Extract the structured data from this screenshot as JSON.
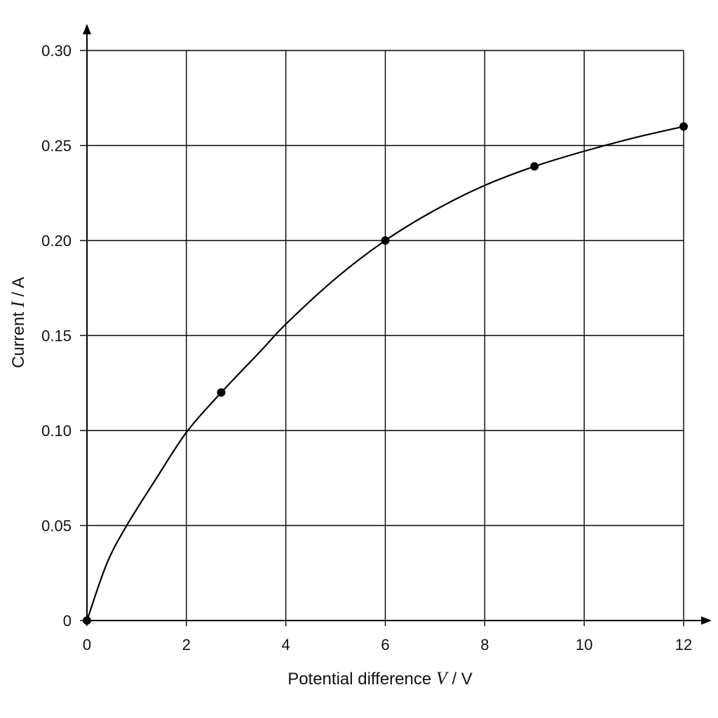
{
  "chart_data": {
    "type": "scatter",
    "xlabel_parts": {
      "prefix": "Potential difference ",
      "symbol": "V",
      "suffix": " / V"
    },
    "ylabel_parts": {
      "prefix": "Current ",
      "symbol": "I",
      "suffix": " / A"
    },
    "xlim": [
      0,
      12
    ],
    "ylim": [
      0,
      0.3
    ],
    "x_ticks": [
      0,
      2,
      4,
      6,
      8,
      10,
      12
    ],
    "x_tick_labels": [
      "0",
      "2",
      "4",
      "6",
      "8",
      "10",
      "12"
    ],
    "y_ticks": [
      0,
      0.05,
      0.1,
      0.15,
      0.2,
      0.25,
      0.3
    ],
    "y_tick_labels": [
      "0",
      "0.05",
      "0.10",
      "0.15",
      "0.20",
      "0.25",
      "0.30"
    ],
    "grid": true,
    "series": [
      {
        "points": [
          {
            "x": 0,
            "y": 0
          },
          {
            "x": 2.7,
            "y": 0.12
          },
          {
            "x": 6,
            "y": 0.2
          },
          {
            "x": 9,
            "y": 0.239
          },
          {
            "x": 12,
            "y": 0.26
          }
        ],
        "fit_curve": [
          {
            "x": 0,
            "y": 0
          },
          {
            "x": 0.4,
            "y": 0.03
          },
          {
            "x": 0.8,
            "y": 0.05
          },
          {
            "x": 1.4,
            "y": 0.075
          },
          {
            "x": 2.0,
            "y": 0.099
          },
          {
            "x": 2.7,
            "y": 0.12
          },
          {
            "x": 3.5,
            "y": 0.142
          },
          {
            "x": 4.0,
            "y": 0.156
          },
          {
            "x": 5.0,
            "y": 0.18
          },
          {
            "x": 6.0,
            "y": 0.2
          },
          {
            "x": 7.0,
            "y": 0.216
          },
          {
            "x": 8.0,
            "y": 0.229
          },
          {
            "x": 9.0,
            "y": 0.239
          },
          {
            "x": 10.0,
            "y": 0.247
          },
          {
            "x": 11.0,
            "y": 0.254
          },
          {
            "x": 12.0,
            "y": 0.26
          }
        ],
        "color": "#000000"
      }
    ]
  }
}
